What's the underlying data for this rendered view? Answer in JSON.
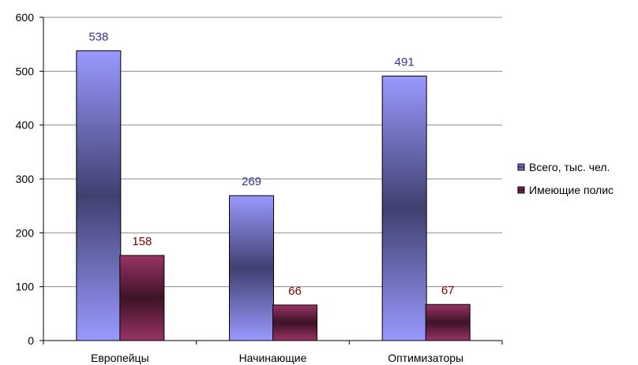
{
  "chart_data": {
    "type": "bar",
    "categories": [
      "Европейцы",
      "Начинающие",
      "Оптимизаторы"
    ],
    "series": [
      {
        "name": "Всего, тыс. чел.",
        "values": [
          538,
          269,
          491
        ],
        "color": "#9999ff",
        "shade": "#404070",
        "label_color": "#333399"
      },
      {
        "name": "Имеющие полис",
        "values": [
          158,
          66,
          67
        ],
        "color": "#993366",
        "shade": "#3d1327",
        "label_color": "#800000"
      }
    ],
    "yticks": [
      "0",
      "100",
      "200",
      "300",
      "400",
      "500",
      "600"
    ],
    "ylim": [
      0,
      600
    ],
    "grid": true,
    "legend_position": "right"
  }
}
